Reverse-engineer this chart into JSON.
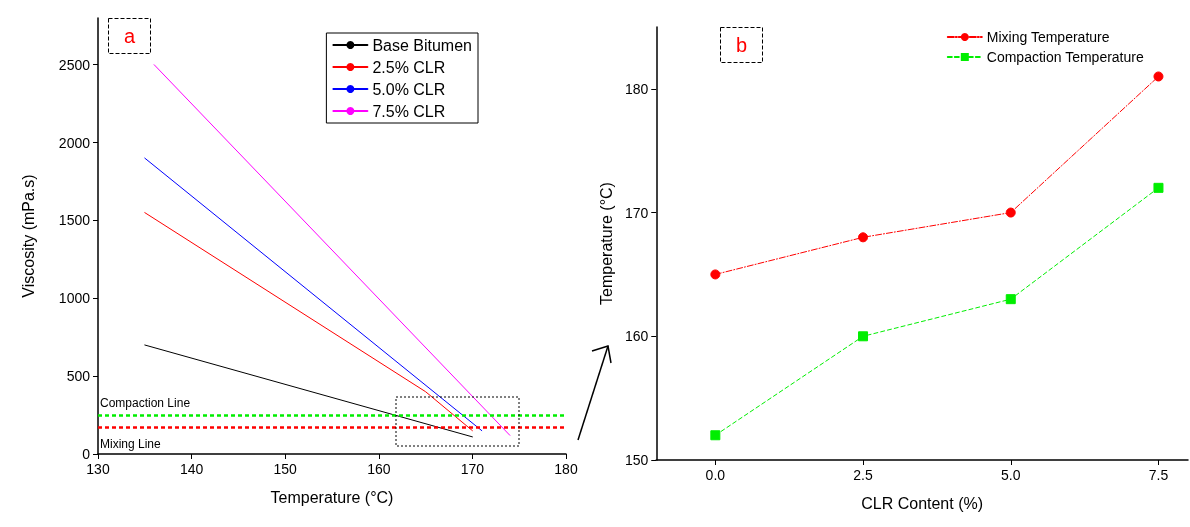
{
  "chart_data": [
    {
      "type": "line",
      "title": "a",
      "xlabel": "Temperature (°C)",
      "ylabel": "Viscosity (mPa.s)",
      "xlim": [
        130,
        180
      ],
      "xticks": [
        130,
        140,
        150,
        160,
        170,
        180
      ],
      "ylim": [
        0,
        2800
      ],
      "yticks": [
        0,
        500,
        1000,
        1500,
        2000,
        2500
      ],
      "series": [
        {
          "name": "Base Bitumen",
          "color": "#000000",
          "x": [
            135,
            170
          ],
          "values": [
            700,
            110
          ]
        },
        {
          "name": "2.5% CLR",
          "color": "#ff0000",
          "x": [
            135,
            165,
            170
          ],
          "values": [
            1550,
            400,
            150
          ]
        },
        {
          "name": "5.0% CLR",
          "color": "#0000ff",
          "x": [
            135,
            171
          ],
          "values": [
            1900,
            150
          ]
        },
        {
          "name": "7.5% CLR",
          "color": "#ff00ff",
          "x": [
            136,
            174
          ],
          "values": [
            2500,
            120
          ]
        }
      ],
      "ref_lines": [
        {
          "axis": "y",
          "value": 250,
          "label": "Compaction Line",
          "color": "#00ee00",
          "line_style": "dashed"
        },
        {
          "axis": "y",
          "value": 170,
          "label": "Mixing Line",
          "color": "#ff0000",
          "line_style": "dashed"
        }
      ],
      "line_style": "solid",
      "marker": "none",
      "legend": "top right",
      "grid": false
    },
    {
      "type": "line",
      "title": "b",
      "xlabel": "CLR Content (%)",
      "ylabel": "Temperature (°C)",
      "x": [
        0,
        2.5,
        5,
        7.5
      ],
      "xlim": [
        -1,
        8
      ],
      "xticks": [
        {
          "value": 0,
          "label": "0.0"
        },
        {
          "value": 2.5,
          "label": "2.5"
        },
        {
          "value": 5,
          "label": "5.0"
        },
        {
          "value": 7.5,
          "label": "7.5"
        }
      ],
      "ylim": [
        150,
        185
      ],
      "yticks": [
        150,
        160,
        170,
        180
      ],
      "series": [
        {
          "name": "Mixing Temperature",
          "color": "#ff0000",
          "values": [
            165,
            168,
            170,
            181
          ],
          "marker": "circle",
          "line_style": "dashdot"
        },
        {
          "name": "Compaction Temperature",
          "color": "#00ee00",
          "values": [
            152,
            160,
            163,
            172
          ],
          "marker": "square",
          "line_style": "dashed"
        }
      ],
      "legend": "top right",
      "grid": false
    }
  ]
}
